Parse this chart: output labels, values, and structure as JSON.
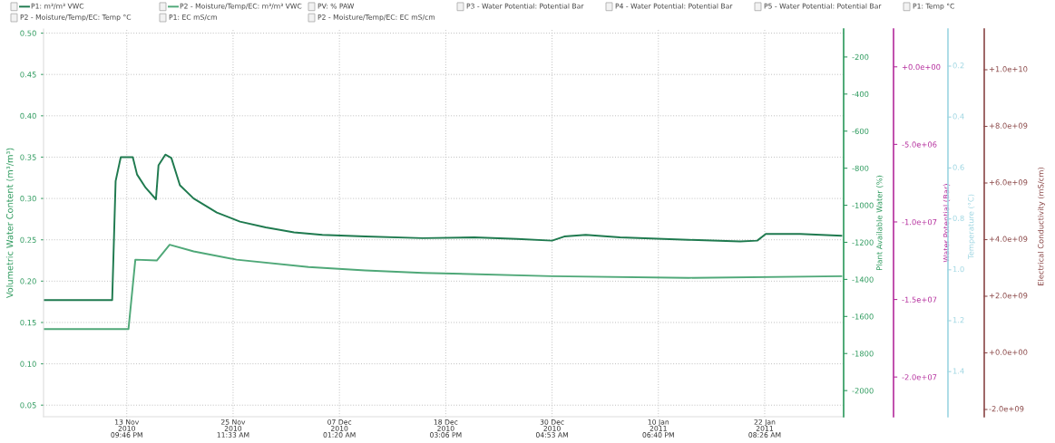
{
  "chart_data": {
    "type": "line",
    "ylabel": "Volumetric Water Content (m³/m³)",
    "y2label": "Plant Available Water (%)",
    "y3label": "Water Potential (Bar)",
    "xlim": [
      "2010-11-04T20:20",
      "2011-01-30T22:40"
    ],
    "xticks": [
      {
        "value": "2010-11-13T21:46",
        "label": "13 Nov\n2010\n09:46 PM"
      },
      {
        "value": "2010-11-25T11:33",
        "label": "25 Nov\n2010\n11:33 AM"
      },
      {
        "value": "2010-12-07T01:20",
        "label": "07 Dec\n2010\n01:20 AM"
      },
      {
        "value": "2010-12-18T15:06",
        "label": "18 Dec\n2010\n03:06 PM"
      },
      {
        "value": "2010-12-30T04:53",
        "label": "30 Dec\n2010\n04:53 AM"
      },
      {
        "value": "2011-01-10T18:40",
        "label": "10 Jan\n2011\n06:40 PM"
      },
      {
        "value": "2011-01-22T08:26",
        "label": "22 Jan\n2011\n08:26 AM"
      }
    ],
    "ylim": [
      0.036,
      0.505
    ],
    "yticks": [
      {
        "value": 0.05,
        "label": "0.05"
      },
      {
        "value": 0.1,
        "label": "0.10"
      },
      {
        "value": 0.15,
        "label": "0.15"
      },
      {
        "value": 0.2,
        "label": "0.20"
      },
      {
        "value": 0.25,
        "label": "0.25"
      },
      {
        "value": 0.3,
        "label": "0.30"
      },
      {
        "value": 0.35,
        "label": "0.35"
      },
      {
        "value": 0.4,
        "label": "0.40"
      },
      {
        "value": 0.45,
        "label": "0.45"
      },
      {
        "value": 0.5,
        "label": "0.50"
      }
    ],
    "y2lim": [
      -2141,
      -49
    ],
    "y2ticks": [
      -200,
      -400,
      -600,
      -800,
      -1000,
      -1200,
      -1400,
      -1600,
      -1800,
      -2000
    ],
    "y3lim": [
      -22560000,
      2440000
    ],
    "y3ticks": [
      {
        "value": 0,
        "label": "+0.0e+00"
      },
      {
        "value": -5000000,
        "label": "-5.0e+06"
      },
      {
        "value": -10000000,
        "label": "-1.0e+07"
      },
      {
        "value": -15000000,
        "label": "-1.5e+07"
      },
      {
        "value": -20000000,
        "label": "-2.0e+07"
      }
    ],
    "grid": true,
    "legend": "top",
    "marker": "none",
    "line_style": "solid",
    "series": [
      {
        "name": "P1: m³/m³ VWC",
        "color": "#1f7a4f",
        "x": [
          "2010-11-04T20:20",
          "2010-11-12T07:40",
          "2010-11-12T16:40",
          "2010-11-13T06:04",
          "2010-11-14T13:28",
          "2010-11-15T00:40",
          "2010-11-15T23:04",
          "2010-11-17T02:00",
          "2010-11-17T08:40",
          "2010-11-18T02:34",
          "2010-11-18T18:16",
          "2010-11-19T16:40",
          "2010-11-21T04:34",
          "2010-11-23T17:04",
          "2010-11-26T05:34",
          "2010-11-29T00:46",
          "2010-12-02T02:46",
          "2010-12-05T04:46",
          "2010-12-09T20:46",
          "2010-12-16T02:46",
          "2010-12-21T17:22",
          "2010-12-26T09:28",
          "2010-12-30T04:53",
          "2010-12-31T12:46",
          "2011-01-02T20:46",
          "2011-01-06T14:22",
          "2011-01-14T01:40",
          "2011-01-19T16:04",
          "2011-01-21T12:52",
          "2011-01-22T11:16",
          "2011-01-26T04:58",
          "2011-01-30T16:34"
        ],
        "values": [
          0.177,
          0.177,
          0.321,
          0.35,
          0.35,
          0.329,
          0.313,
          0.299,
          0.34,
          0.353,
          0.349,
          0.316,
          0.3,
          0.283,
          0.272,
          0.265,
          0.259,
          0.256,
          0.254,
          0.252,
          0.253,
          0.251,
          0.249,
          0.254,
          0.256,
          0.253,
          0.25,
          0.248,
          0.249,
          0.257,
          0.257,
          0.255
        ]
      },
      {
        "name": "P2 - Moisture/Temp/EC: m³/m³ VWC",
        "color": "#4fa878",
        "x": [
          "2010-11-04T20:20",
          "2010-11-14T02:16",
          "2010-11-14T20:10",
          "2010-11-17T04:10",
          "2010-11-18T13:46",
          "2010-11-21T04:34",
          "2010-11-25T20:34",
          "2010-12-03T16:46",
          "2010-12-09T20:46",
          "2010-12-16T02:46",
          "2010-12-30T04:53",
          "2011-01-14T01:40",
          "2011-01-30T16:34"
        ],
        "values": [
          0.142,
          0.142,
          0.226,
          0.225,
          0.244,
          0.236,
          0.226,
          0.217,
          0.213,
          0.21,
          0.206,
          0.204,
          0.206
        ]
      }
    ],
    "annotations": [
      "PV: % PAW",
      "P3 - Water Potential: Potential Bar",
      "P4 - Water Potential: Potential Bar",
      "P5 - Water Potential: Potential Bar",
      "P1: Temp °C",
      "P2 - Moisture/Temp/EC: Temp °C",
      "P1: EC mS/cm",
      "P2 - Moisture/Temp/EC: EC mS/cm",
      "Temperature (°C)",
      "0.2",
      "0.4",
      "0.6",
      "0.8",
      "1.0",
      "1.2",
      "1.4",
      "Electrical Conductivity (mS/cm)",
      "+1.0e+10",
      "+8.0e+09",
      "+6.0e+09",
      "+4.0e+09",
      "+2.0e+09",
      "+0.0e+00",
      "-2.0e+09"
    ]
  }
}
